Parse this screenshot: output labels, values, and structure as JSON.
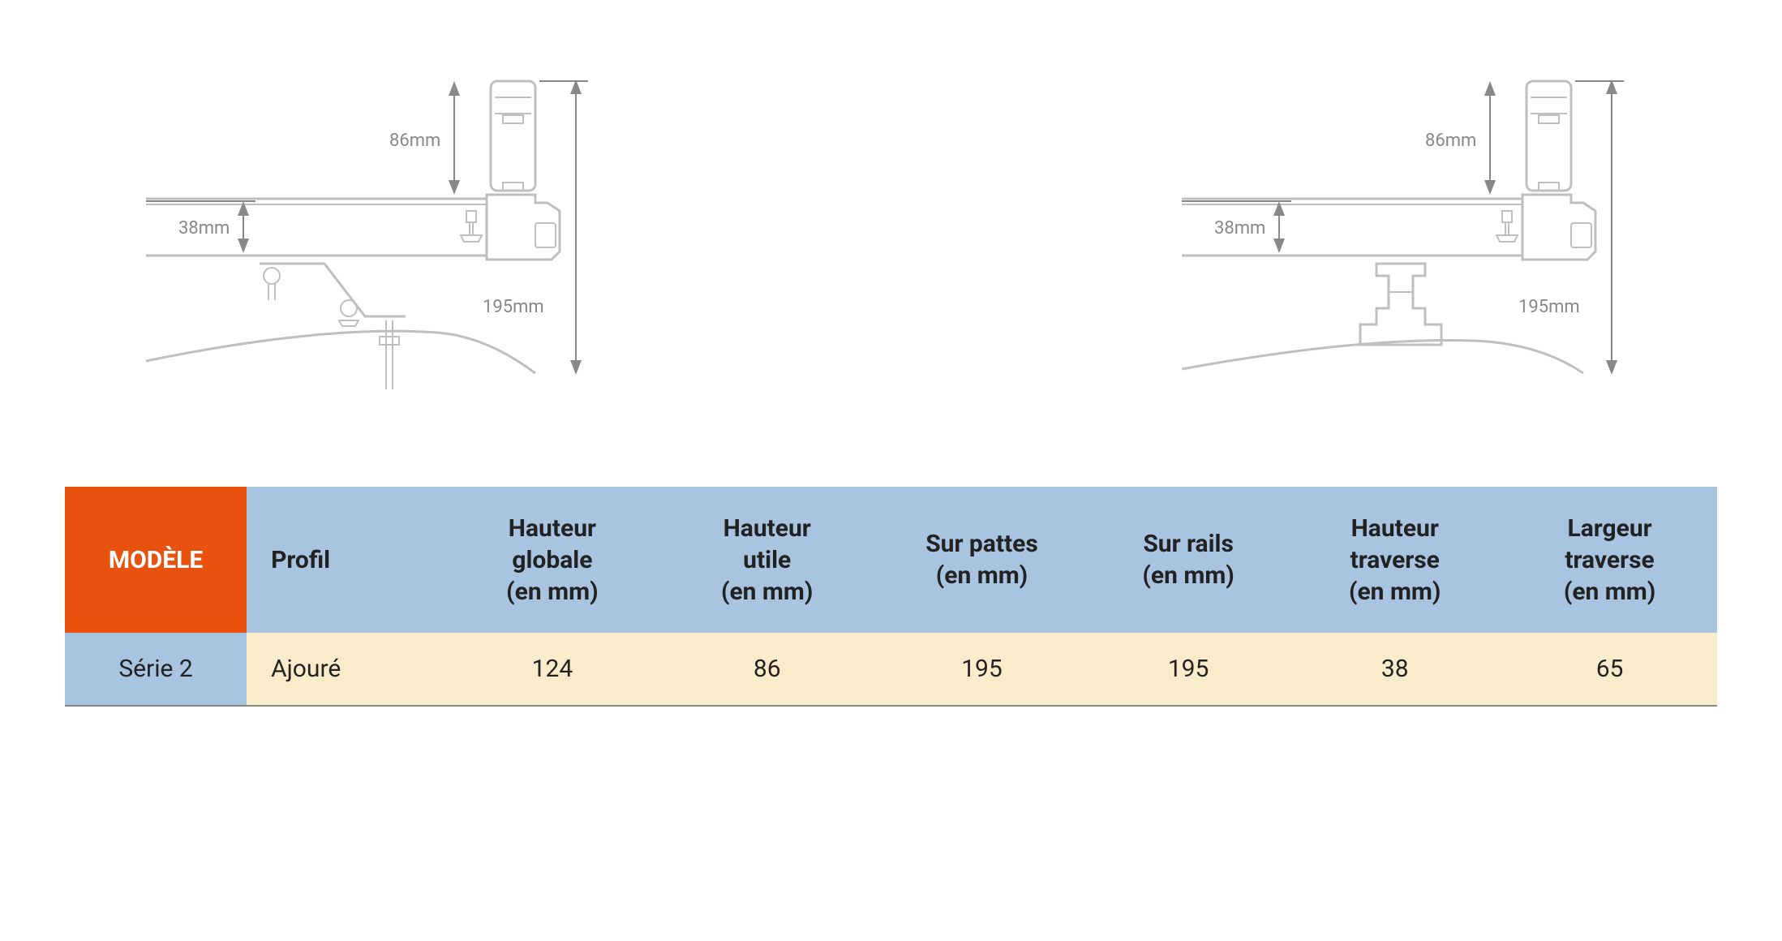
{
  "diagrams": {
    "left": {
      "dim_86": "86mm",
      "dim_38": "38mm",
      "dim_195": "195mm"
    },
    "right": {
      "dim_86": "86mm",
      "dim_38": "38mm",
      "dim_195": "195mm"
    },
    "colors": {
      "outline": "#bfbfbf",
      "dimension": "#888888",
      "background": "#ffffff"
    }
  },
  "table": {
    "header": {
      "model": "MODÈLE",
      "profil": "Profil",
      "hauteur_globale": "Hauteur globale (en mm)",
      "hauteur_utile": "Hauteur utile (en mm)",
      "sur_pattes": "Sur pattes (en mm)",
      "sur_rails": "Sur rails (en mm)",
      "hauteur_traverse": "Hauteur traverse (en mm)",
      "largeur_traverse": "Largeur traverse (en mm)"
    },
    "rows": [
      {
        "model": "Série 2",
        "profil": "Ajouré",
        "hauteur_globale": "124",
        "hauteur_utile": "86",
        "sur_pattes": "195",
        "sur_rails": "195",
        "hauteur_traverse": "38",
        "largeur_traverse": "65"
      }
    ],
    "colors": {
      "header_bg": "#a8c4e0",
      "model_header_bg": "#e8520e",
      "model_header_text": "#ffffff",
      "row_bg": "#faecca",
      "model_cell_bg": "#a8c4e0",
      "border": "#888888"
    }
  }
}
